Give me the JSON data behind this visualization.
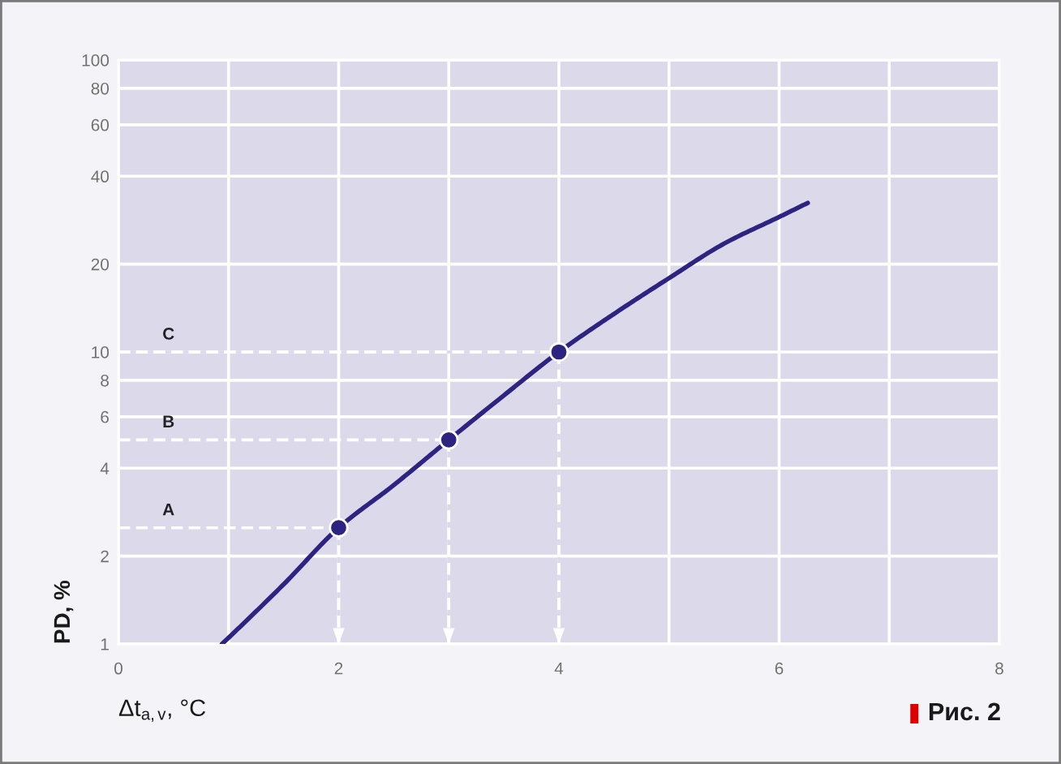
{
  "chart_data": {
    "type": "line",
    "xlabel": "Δt$_{a,v}$, °C",
    "ylabel": "PD, %",
    "series": [
      {
        "color": "#2d2482",
        "x": [
          0.94,
          1,
          1.5,
          2,
          2.5,
          3,
          3.5,
          4,
          4.5,
          5,
          5.5,
          6,
          6.26
        ],
        "values": [
          1,
          1.05,
          1.6,
          2.5,
          3.5,
          5,
          7.1,
          10,
          13.5,
          17.9,
          23.5,
          29,
          32.4
        ]
      },
      {
        "type": "scatter",
        "color": "#2d2482",
        "marker": "circle",
        "x": [
          2,
          3,
          4
        ],
        "values": [
          2.5,
          5,
          10
        ]
      },
      {
        "name": "A",
        "color": "#ffffff",
        "line_style": "dashed",
        "x": [
          0,
          2
        ],
        "values": [
          2.5,
          2.5
        ]
      },
      {
        "name": "B",
        "color": "#ffffff",
        "line_style": "dashed",
        "x": [
          0,
          3
        ],
        "values": [
          5,
          5
        ]
      },
      {
        "name": "C",
        "color": "#ffffff",
        "line_style": "dashed",
        "x": [
          0,
          4
        ],
        "values": [
          10,
          10
        ]
      },
      {
        "color": "#ffffff",
        "line_style": "dashed",
        "x": [
          2,
          2
        ],
        "values": [
          2.5,
          1
        ]
      },
      {
        "color": "#ffffff",
        "line_style": "dashed",
        "x": [
          3,
          3
        ],
        "values": [
          5,
          1
        ]
      },
      {
        "color": "#ffffff",
        "line_style": "dashed",
        "x": [
          4,
          4
        ],
        "values": [
          10,
          1
        ]
      }
    ],
    "annotations": [
      "Рис. 2"
    ],
    "xlim": [
      0,
      8
    ],
    "ylim": [
      1,
      100
    ],
    "xticks": [
      0,
      {
        "value": 1,
        "label": null
      },
      2,
      {
        "value": 3,
        "label": null
      },
      4,
      {
        "value": 5,
        "label": null
      },
      6,
      {
        "value": 7,
        "label": null
      },
      8
    ],
    "yticks": [
      1,
      2,
      4,
      6,
      8,
      10,
      20,
      40,
      60,
      80,
      100
    ],
    "log": "y",
    "grid": true
  }
}
